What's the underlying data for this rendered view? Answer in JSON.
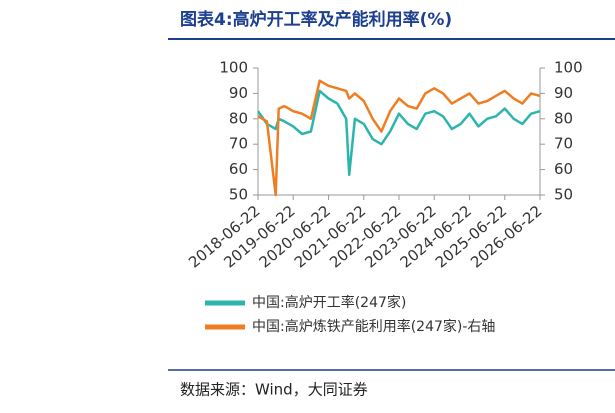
{
  "chart_data": {
    "type": "line",
    "title": "图表4:高炉开工率及产能利用率(%)",
    "source": "数据来源：Wind，大同证券",
    "x": [
      "2018-06-22",
      "2018-09-22",
      "2018-12-22",
      "2019-01-22",
      "2019-03-22",
      "2019-06-22",
      "2019-09-22",
      "2019-12-22",
      "2020-03-22",
      "2020-06-22",
      "2020-09-22",
      "2020-12-22",
      "2021-01-22",
      "2021-03-22",
      "2021-06-22",
      "2021-09-22",
      "2021-12-22",
      "2022-03-22",
      "2022-06-22",
      "2022-09-22",
      "2022-12-22",
      "2023-03-22",
      "2023-06-22",
      "2023-09-22",
      "2023-12-22",
      "2024-03-22",
      "2024-06-22",
      "2024-09-22",
      "2024-12-22",
      "2025-03-22",
      "2025-06-22",
      "2025-09-22",
      "2025-12-22",
      "2026-03-22",
      "2026-06-22"
    ],
    "series": [
      {
        "name": "中国:高炉开工率(247家)",
        "color": "#2bb5ac",
        "values": [
          83,
          78,
          76,
          80,
          79,
          77,
          74,
          75,
          91,
          88,
          86,
          80,
          58,
          80,
          78,
          72,
          70,
          75,
          82,
          78,
          76,
          82,
          83,
          81,
          76,
          78,
          82,
          77,
          80,
          81,
          84,
          80,
          78,
          82,
          83
        ]
      },
      {
        "name": "中国:高炉炼铁产能利用率(247家)-右轴",
        "color": "#ef7d22",
        "axis": "y2",
        "values": [
          81,
          79,
          50,
          84,
          85,
          83,
          82,
          80,
          95,
          93,
          92,
          91,
          88,
          90,
          87,
          80,
          75,
          83,
          88,
          85,
          84,
          90,
          92,
          90,
          86,
          88,
          90,
          86,
          87,
          89,
          91,
          88,
          86,
          90,
          89
        ]
      }
    ],
    "xlim": [
      "2018-06-22",
      "2026-06-22"
    ],
    "xticks": [
      "2018-06-22",
      "2019-06-22",
      "2020-06-22",
      "2021-06-22",
      "2022-06-22",
      "2023-06-22",
      "2024-06-22",
      "2025-06-22",
      "2026-06-22"
    ],
    "ylim": [
      50,
      100
    ],
    "yticks": [
      50,
      60,
      70,
      80,
      90,
      100
    ],
    "y2lim": [
      50,
      100
    ],
    "y2ticks": [
      50,
      60,
      70,
      80,
      90,
      100
    ]
  }
}
